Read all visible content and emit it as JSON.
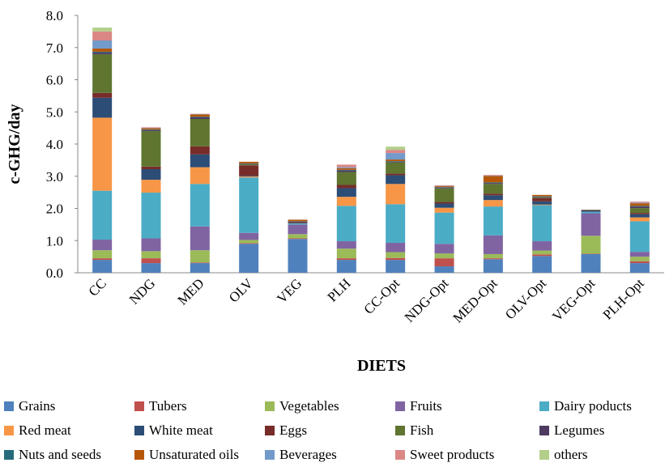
{
  "chart_data": {
    "type": "bar",
    "stacked": true,
    "y_label": "c-GHG/day",
    "x_label": "DIETS",
    "categories": [
      "CC",
      "NDG",
      "MED",
      "OLV",
      "VEG",
      "PLH",
      "CC-Opt",
      "NDG-Opt",
      "MED-Opt",
      "OLV-Opt",
      "VEG-Opt",
      "PLH-Opt"
    ],
    "ylim": [
      0,
      8
    ],
    "yticks": [
      {
        "value": 0,
        "label": "0.0"
      },
      {
        "value": 1,
        "label": "1.0"
      },
      {
        "value": 2,
        "label": "2.0"
      },
      {
        "value": 3,
        "label": "3.0"
      },
      {
        "value": 4,
        "label": "4.0"
      },
      {
        "value": 5,
        "label": "5.0"
      },
      {
        "value": 6,
        "label": "6.0"
      },
      {
        "value": 7,
        "label": "7.0"
      },
      {
        "value": 8,
        "label": "8.0"
      }
    ],
    "series": [
      {
        "name": "Grains",
        "color": "#4f81bd",
        "values": [
          0.4,
          0.3,
          0.3,
          0.9,
          1.05,
          0.4,
          0.4,
          0.2,
          0.42,
          0.52,
          0.58,
          0.3
        ]
      },
      {
        "name": "Tubers",
        "color": "#c0504d",
        "values": [
          0.05,
          0.15,
          0.02,
          0.02,
          0.02,
          0.05,
          0.06,
          0.25,
          0.03,
          0.05,
          0.01,
          0.06
        ]
      },
      {
        "name": "Vegetables",
        "color": "#9bbb59",
        "values": [
          0.25,
          0.22,
          0.38,
          0.1,
          0.13,
          0.3,
          0.18,
          0.15,
          0.13,
          0.12,
          0.56,
          0.14
        ]
      },
      {
        "name": "Fruits",
        "color": "#8064a2",
        "values": [
          0.33,
          0.4,
          0.74,
          0.22,
          0.3,
          0.23,
          0.29,
          0.3,
          0.58,
          0.29,
          0.7,
          0.15
        ]
      },
      {
        "name": "Dairy poducts",
        "color": "#4bacc6",
        "values": [
          1.52,
          1.42,
          1.32,
          1.72,
          0.04,
          1.1,
          1.2,
          0.97,
          0.9,
          1.12,
          0.05,
          0.95
        ]
      },
      {
        "name": "Red meat",
        "color": "#f79646",
        "values": [
          2.27,
          0.4,
          0.52,
          0.03,
          0,
          0.28,
          0.63,
          0.15,
          0.2,
          0.02,
          0,
          0.12
        ]
      },
      {
        "name": "White meat",
        "color": "#2c4d75",
        "values": [
          0.62,
          0.33,
          0.4,
          0.02,
          0,
          0.27,
          0.27,
          0.13,
          0.15,
          0.1,
          0,
          0.1
        ]
      },
      {
        "name": "Eggs",
        "color": "#772c2a",
        "values": [
          0.15,
          0.08,
          0.25,
          0.33,
          0.02,
          0.1,
          0.05,
          0.05,
          0.05,
          0.1,
          0,
          0.04
        ]
      },
      {
        "name": "Fish",
        "color": "#5f7530",
        "values": [
          1.2,
          1.1,
          0.85,
          0.03,
          0,
          0.4,
          0.35,
          0.42,
          0.3,
          0.03,
          0,
          0.15
        ]
      },
      {
        "name": "Legumes",
        "color": "#4d3b62",
        "values": [
          0.05,
          0.03,
          0.05,
          0.02,
          0.03,
          0.05,
          0.02,
          0.02,
          0.03,
          0.02,
          0.04,
          0.05
        ]
      },
      {
        "name": "Nuts and seeds",
        "color": "#276a7c",
        "values": [
          0.03,
          0.02,
          0.02,
          0.01,
          0.01,
          0.02,
          0.02,
          0.02,
          0.02,
          0.01,
          0.01,
          0.02
        ]
      },
      {
        "name": "Unsaturated oils",
        "color": "#b65708",
        "values": [
          0.1,
          0.04,
          0.07,
          0.05,
          0.05,
          0.05,
          0.05,
          0.03,
          0.2,
          0.04,
          0.01,
          0.08
        ]
      },
      {
        "name": "Beverages",
        "color": "#729aca",
        "values": [
          0.25,
          0.01,
          0.01,
          0,
          0,
          0.03,
          0.2,
          0.01,
          0.01,
          0,
          0,
          0.02
        ]
      },
      {
        "name": "Sweet products",
        "color": "#da8786",
        "values": [
          0.28,
          0.02,
          0.01,
          0,
          0,
          0.08,
          0.1,
          0.02,
          0.02,
          0,
          0,
          0.03
        ]
      },
      {
        "name": "others",
        "color": "#b3cf8a",
        "values": [
          0.12,
          0,
          0,
          0,
          0,
          0,
          0.1,
          0,
          0,
          0,
          0,
          0
        ]
      }
    ]
  }
}
